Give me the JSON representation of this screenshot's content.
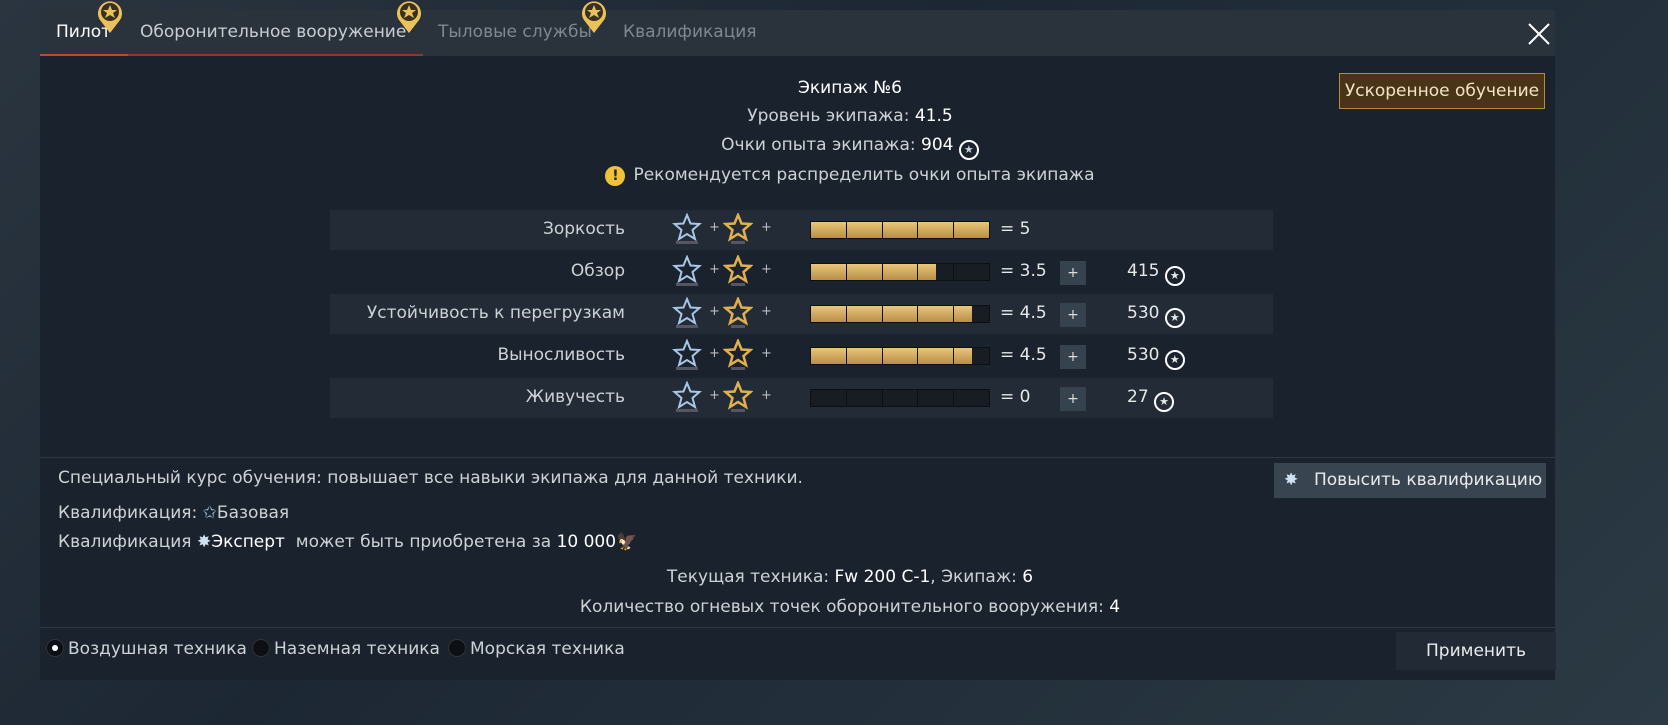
{
  "tabs": [
    {
      "label": "Пилот",
      "active": true
    },
    {
      "label": "Оборонительное вооружение"
    },
    {
      "label": "Тыловые службы"
    },
    {
      "label": "Квалификация"
    }
  ],
  "crew": {
    "title": "Экипаж №6",
    "level_label": "Уровень экипажа:",
    "level": "41.5",
    "xp_label": "Очки опыта экипажа:",
    "xp": "904",
    "warning": "Рекомендуется распределить очки опыта экипажа"
  },
  "accelerated_button": "Ускоренное обучение",
  "skills": [
    {
      "name": "Зоркость",
      "value": 5,
      "display": "= 5",
      "cost": ""
    },
    {
      "name": "Обзор",
      "value": 3.5,
      "display": "= 3.5",
      "cost": "415"
    },
    {
      "name": "Устойчивость к перегрузкам",
      "value": 4.5,
      "display": "= 4.5",
      "cost": "530"
    },
    {
      "name": "Выносливость",
      "value": 4.5,
      "display": "= 4.5",
      "cost": "530"
    },
    {
      "name": "Живучесть",
      "value": 0,
      "display": "= 0",
      "cost": "27"
    }
  ],
  "plus": "+",
  "info": {
    "course": "Специальный курс обучения: повышает все навыки экипажа для данной техники.",
    "qual_label": "Квалификация:",
    "qual_value": "Базовая",
    "expert_prefix": "Квалификация",
    "expert_name": "Эксперт",
    "expert_mid": "может быть приобретена за",
    "expert_price": "10 000",
    "vehicle_label": "Текущая техника:",
    "vehicle": "Fw 200 C-1",
    "crew_label": ", Экипаж:",
    "crew_num": "6",
    "guns_label": "Количество огневых точек оборонительного вооружения:",
    "guns": "4"
  },
  "upgrade_button": "Повысить квалификацию",
  "radios": [
    {
      "label": "Воздушная техника",
      "checked": true
    },
    {
      "label": "Наземная техника"
    },
    {
      "label": "Морская техника"
    }
  ],
  "apply_button": "Применить",
  "colors": {
    "accent": "#c2462a",
    "gold": "#e8c678"
  }
}
